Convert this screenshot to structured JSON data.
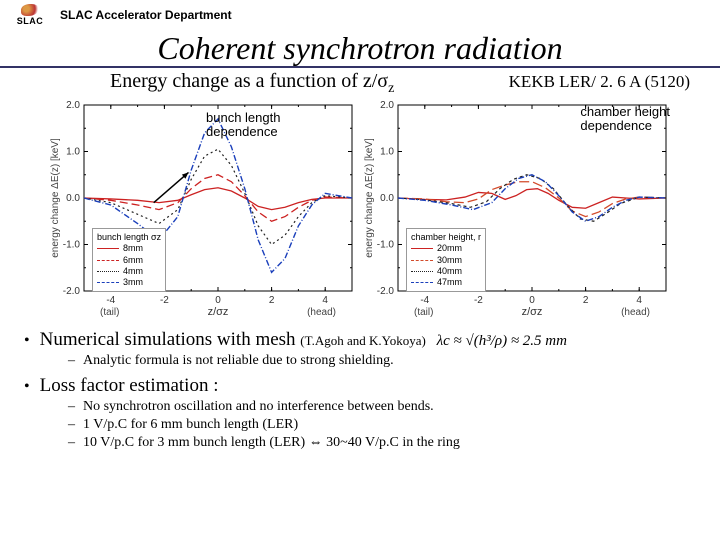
{
  "header": {
    "logo_text": "SLAC",
    "dept": "SLAC Accelerator Department"
  },
  "title": "Coherent synchrotron radiation",
  "subtitle_prefix": "Energy change as a function of z/σ",
  "subtitle_sub": "z",
  "kekb": "KEKB LER/ 2. 6 A (5120)",
  "chart_left": {
    "annot": "bunch length\ndependence",
    "ylabel": "energy change ΔE(z) [keV]",
    "xlabel_tail": "(tail)",
    "xlabel_mid": "z/σz",
    "xlabel_head": "(head)",
    "ylim": [
      -2.0,
      2.0
    ],
    "yticks": [
      -2.0,
      -1.0,
      0.0,
      1.0,
      2.0
    ],
    "xlim": [
      -5,
      5
    ],
    "xticks": [
      -4,
      -2,
      0,
      2,
      4
    ],
    "legend_title": "bunch length σz",
    "legend": [
      {
        "label": "8mm",
        "color": "#cc2222",
        "dash": "none"
      },
      {
        "label": "6mm",
        "color": "#cc2222",
        "dash": "8,4"
      },
      {
        "label": "4mm",
        "color": "#222222",
        "dash": "2,3"
      },
      {
        "label": "3mm",
        "color": "#1a3fbb",
        "dash": "6,2,1,2"
      }
    ],
    "series": [
      {
        "color": "#cc2222",
        "dash": "none",
        "width": 1.3,
        "pts": [
          [
            -5,
            0
          ],
          [
            -4,
            -0.02
          ],
          [
            -3,
            -0.05
          ],
          [
            -2.2,
            -0.1
          ],
          [
            -1.5,
            -0.05
          ],
          [
            -1,
            0.07
          ],
          [
            -0.5,
            0.18
          ],
          [
            0,
            0.22
          ],
          [
            0.5,
            0.15
          ],
          [
            1,
            0.0
          ],
          [
            1.5,
            -0.18
          ],
          [
            2,
            -0.25
          ],
          [
            2.5,
            -0.2
          ],
          [
            3,
            -0.1
          ],
          [
            3.5,
            -0.03
          ],
          [
            4,
            0
          ],
          [
            5,
            0
          ]
        ]
      },
      {
        "color": "#cc2222",
        "dash": "8,4",
        "width": 1.3,
        "pts": [
          [
            -5,
            0
          ],
          [
            -4,
            -0.05
          ],
          [
            -3,
            -0.15
          ],
          [
            -2.2,
            -0.25
          ],
          [
            -1.5,
            -0.1
          ],
          [
            -1,
            0.2
          ],
          [
            -0.5,
            0.42
          ],
          [
            0,
            0.5
          ],
          [
            0.5,
            0.35
          ],
          [
            1,
            0.05
          ],
          [
            1.5,
            -0.3
          ],
          [
            2,
            -0.5
          ],
          [
            2.5,
            -0.4
          ],
          [
            3,
            -0.2
          ],
          [
            3.5,
            -0.05
          ],
          [
            4,
            0.02
          ],
          [
            5,
            0
          ]
        ]
      },
      {
        "color": "#222222",
        "dash": "2,3",
        "width": 1.2,
        "pts": [
          [
            -5,
            0
          ],
          [
            -4,
            -0.1
          ],
          [
            -3,
            -0.35
          ],
          [
            -2.2,
            -0.55
          ],
          [
            -1.5,
            -0.25
          ],
          [
            -1,
            0.4
          ],
          [
            -0.5,
            0.9
          ],
          [
            0,
            1.05
          ],
          [
            0.5,
            0.7
          ],
          [
            1,
            0.1
          ],
          [
            1.5,
            -0.6
          ],
          [
            2,
            -1.0
          ],
          [
            2.5,
            -0.8
          ],
          [
            3,
            -0.4
          ],
          [
            3.5,
            -0.1
          ],
          [
            4,
            0.05
          ],
          [
            5,
            0
          ]
        ]
      },
      {
        "color": "#1a3fbb",
        "dash": "6,2,1,2",
        "width": 1.4,
        "pts": [
          [
            -5,
            0
          ],
          [
            -4,
            -0.15
          ],
          [
            -3,
            -0.55
          ],
          [
            -2.2,
            -0.9
          ],
          [
            -1.5,
            -0.4
          ],
          [
            -1,
            0.6
          ],
          [
            -0.5,
            1.4
          ],
          [
            0,
            1.7
          ],
          [
            0.5,
            1.1
          ],
          [
            1,
            0.2
          ],
          [
            1.5,
            -0.9
          ],
          [
            2,
            -1.6
          ],
          [
            2.5,
            -1.3
          ],
          [
            3,
            -0.6
          ],
          [
            3.5,
            -0.15
          ],
          [
            4,
            0.1
          ],
          [
            5,
            0
          ]
        ]
      }
    ],
    "arrow_from": [
      -2.4,
      -0.1
    ],
    "arrow_to": [
      -1.1,
      0.55
    ]
  },
  "chart_right": {
    "annot": "chamber height\ndependence",
    "ylabel": "energy change ΔE(z) [keV]",
    "xlabel_tail": "(tail)",
    "xlabel_mid": "z/σz",
    "xlabel_head": "(head)",
    "ylim": [
      -2.0,
      2.0
    ],
    "yticks": [
      -2.0,
      -1.0,
      0.0,
      1.0,
      2.0
    ],
    "xlim": [
      -5,
      5
    ],
    "xticks": [
      -4,
      -2,
      0,
      2,
      4
    ],
    "legend_title": "chamber height, r",
    "legend": [
      {
        "label": "20mm",
        "color": "#cc2222",
        "dash": "none"
      },
      {
        "label": "30mm",
        "color": "#d24a2a",
        "dash": "10,4"
      },
      {
        "label": "40mm",
        "color": "#222222",
        "dash": "3,3"
      },
      {
        "label": "47mm",
        "color": "#1a3fbb",
        "dash": "6,2,1,2"
      }
    ],
    "series": [
      {
        "color": "#cc2222",
        "dash": "none",
        "width": 1.3,
        "pts": [
          [
            -5,
            0
          ],
          [
            -4,
            -0.03
          ],
          [
            -3.2,
            -0.04
          ],
          [
            -2.5,
            0.02
          ],
          [
            -2,
            0.12
          ],
          [
            -1.5,
            0.1
          ],
          [
            -1,
            -0.03
          ],
          [
            -0.6,
            0.05
          ],
          [
            -0.2,
            0.18
          ],
          [
            0.2,
            0.2
          ],
          [
            0.6,
            0.1
          ],
          [
            1,
            -0.05
          ],
          [
            1.5,
            -0.2
          ],
          [
            2,
            -0.22
          ],
          [
            2.5,
            -0.1
          ],
          [
            3,
            0.02
          ],
          [
            3.5,
            0
          ],
          [
            4,
            -0.02
          ],
          [
            5,
            0
          ]
        ]
      },
      {
        "color": "#d24a2a",
        "dash": "10,4",
        "width": 1.3,
        "pts": [
          [
            -5,
            0
          ],
          [
            -4,
            -0.02
          ],
          [
            -3.2,
            -0.08
          ],
          [
            -2.5,
            -0.1
          ],
          [
            -2,
            -0.02
          ],
          [
            -1.5,
            0.18
          ],
          [
            -1,
            0.28
          ],
          [
            -0.5,
            0.35
          ],
          [
            0,
            0.35
          ],
          [
            0.5,
            0.22
          ],
          [
            1,
            0.0
          ],
          [
            1.5,
            -0.28
          ],
          [
            2,
            -0.4
          ],
          [
            2.5,
            -0.3
          ],
          [
            3,
            -0.12
          ],
          [
            3.5,
            -0.02
          ],
          [
            4,
            0.02
          ],
          [
            5,
            0
          ]
        ]
      },
      {
        "color": "#222222",
        "dash": "3,3",
        "width": 1.2,
        "pts": [
          [
            -5,
            0
          ],
          [
            -4,
            -0.04
          ],
          [
            -3,
            -0.12
          ],
          [
            -2.3,
            -0.2
          ],
          [
            -1.7,
            -0.08
          ],
          [
            -1.2,
            0.2
          ],
          [
            -0.7,
            0.4
          ],
          [
            -0.2,
            0.5
          ],
          [
            0.3,
            0.42
          ],
          [
            0.8,
            0.2
          ],
          [
            1.3,
            -0.15
          ],
          [
            1.8,
            -0.45
          ],
          [
            2.3,
            -0.5
          ],
          [
            2.8,
            -0.32
          ],
          [
            3.3,
            -0.12
          ],
          [
            4,
            0.02
          ],
          [
            5,
            0
          ]
        ]
      },
      {
        "color": "#1a3fbb",
        "dash": "6,2,1,2",
        "width": 1.4,
        "pts": [
          [
            -5,
            0
          ],
          [
            -4,
            -0.05
          ],
          [
            -3,
            -0.15
          ],
          [
            -2.2,
            -0.25
          ],
          [
            -1.5,
            -0.1
          ],
          [
            -1,
            0.2
          ],
          [
            -0.5,
            0.42
          ],
          [
            0,
            0.5
          ],
          [
            0.5,
            0.35
          ],
          [
            1,
            0.05
          ],
          [
            1.5,
            -0.3
          ],
          [
            2,
            -0.5
          ],
          [
            2.5,
            -0.4
          ],
          [
            3,
            -0.2
          ],
          [
            3.5,
            -0.05
          ],
          [
            4,
            0.02
          ],
          [
            5,
            0
          ]
        ]
      }
    ]
  },
  "bullets": {
    "num_sim": "Numerical simulations with mesh",
    "cite": "(T.Agoh and K.Yokoya)",
    "formula": "λc ≈ √(h³/ρ) ≈ 2.5 mm",
    "analytic": "Analytic formula is not reliable due to strong shielding.",
    "loss_title": "Loss factor estimation :",
    "loss": [
      "No synchrotron oscillation and no interference between bends.",
      "1 V/p.C for 6 mm bunch length (LER)",
      "10 V/p.C for 3 mm bunch length (LER) ⇔ 30~40 V/p.C in the ring"
    ]
  }
}
